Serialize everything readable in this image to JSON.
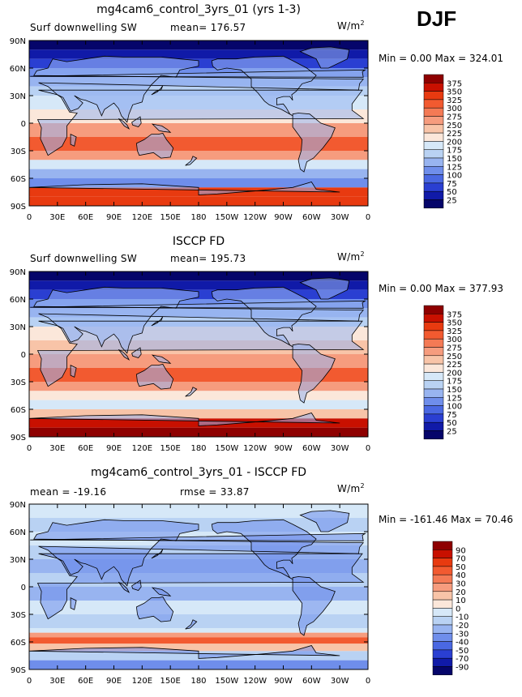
{
  "season": "DJF",
  "units_prefix": "W/m",
  "units_exp": "2",
  "chart_data": [
    {
      "type": "heatmap",
      "title": "mg4cam6_control_3yrs_01 (yrs 1-3)",
      "left_label": "Surf downwelling SW",
      "stat": "mean= 176.57",
      "minmax": "Min =    0.00 Max = 324.01",
      "x_ticks": [
        "0",
        "30E",
        "60E",
        "90E",
        "120E",
        "150E",
        "180",
        "150W",
        "120W",
        "90W",
        "60W",
        "30W",
        "0"
      ],
      "y_ticks": [
        "90N",
        "60N",
        "30N",
        "0",
        "30S",
        "60S",
        "90S"
      ],
      "levels": [
        "375",
        "350",
        "325",
        "300",
        "275",
        "250",
        "225",
        "200",
        "175",
        "150",
        "125",
        "100",
        "75",
        "50",
        "25"
      ],
      "colors": [
        "#8e0000",
        "#c81000",
        "#e83a10",
        "#f25a30",
        "#f47a55",
        "#f69c7e",
        "#f8c4a8",
        "#fbe7da",
        "#d6e8f8",
        "#b9d2f3",
        "#98b4f0",
        "#6f8eeb",
        "#4a68e2",
        "#2a3fd2",
        "#101aa8",
        "#05056a"
      ]
    },
    {
      "type": "heatmap",
      "title": "ISCCP FD",
      "left_label": "Surf downwelling SW",
      "stat": "mean= 195.73",
      "minmax": "Min =    0.00 Max = 377.93",
      "x_ticks": [
        "0",
        "30E",
        "60E",
        "90E",
        "120E",
        "150E",
        "180",
        "150W",
        "120W",
        "90W",
        "60W",
        "30W",
        "0"
      ],
      "y_ticks": [
        "90N",
        "60N",
        "30N",
        "0",
        "30S",
        "60S",
        "90S"
      ],
      "levels": [
        "375",
        "350",
        "325",
        "300",
        "275",
        "250",
        "225",
        "200",
        "175",
        "150",
        "125",
        "100",
        "75",
        "50",
        "25"
      ],
      "colors": [
        "#8e0000",
        "#c81000",
        "#e83a10",
        "#f25a30",
        "#f47a55",
        "#f69c7e",
        "#f8c4a8",
        "#fbe7da",
        "#d6e8f8",
        "#b9d2f3",
        "#98b4f0",
        "#6f8eeb",
        "#4a68e2",
        "#2a3fd2",
        "#101aa8",
        "#05056a"
      ]
    },
    {
      "type": "heatmap",
      "title": "mg4cam6_control_3yrs_01 - ISCCP FD",
      "left_label": "mean = -19.16",
      "stat": "rmse =  33.87",
      "minmax": "Min = -161.46 Max =  70.46",
      "x_ticks": [
        "0",
        "30E",
        "60E",
        "90E",
        "120E",
        "150E",
        "180",
        "150W",
        "120W",
        "90W",
        "60W",
        "30W",
        "0"
      ],
      "y_ticks": [
        "90N",
        "60N",
        "30N",
        "0",
        "30S",
        "60S",
        "90S"
      ],
      "levels": [
        "90",
        "70",
        "50",
        "40",
        "30",
        "20",
        "10",
        "0",
        "-10",
        "-20",
        "-30",
        "-40",
        "-50",
        "-70",
        "-90"
      ],
      "colors": [
        "#8e0000",
        "#c81000",
        "#e83a10",
        "#f25a30",
        "#f47a55",
        "#f69c7e",
        "#f8c4a8",
        "#fbe7da",
        "#d6e8f8",
        "#b9d2f3",
        "#98b4f0",
        "#6f8eeb",
        "#4a68e2",
        "#2a3fd2",
        "#101aa8",
        "#05056a"
      ]
    }
  ]
}
